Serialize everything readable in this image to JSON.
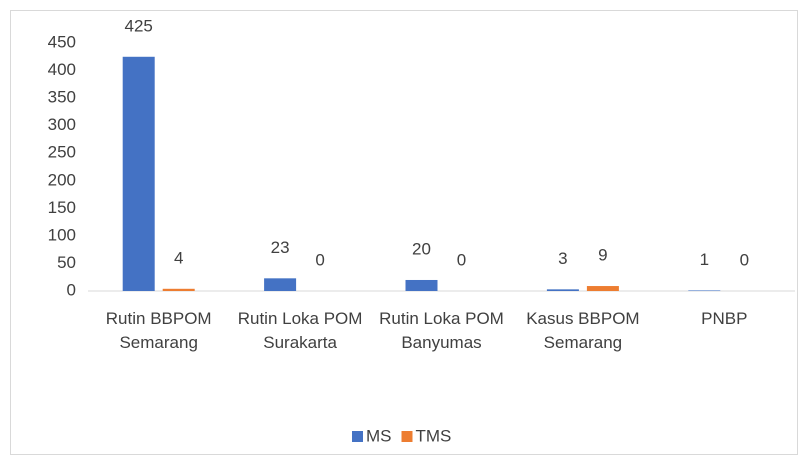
{
  "chart_data": {
    "type": "bar",
    "categories": [
      "Rutin BBPOM Semarang",
      "Rutin Loka POM Surakarta",
      "Rutin Loka POM Banyumas",
      "Kasus BBPOM Semarang",
      "PNBP"
    ],
    "series": [
      {
        "name": "MS",
        "color": "#4472c4",
        "values": [
          425,
          23,
          20,
          3,
          1
        ]
      },
      {
        "name": "TMS",
        "color": "#ed7d31",
        "values": [
          4,
          0,
          0,
          9,
          0
        ]
      }
    ],
    "ylim": [
      0,
      450
    ],
    "yticks": [
      0,
      50,
      100,
      150,
      200,
      250,
      300,
      350,
      400,
      450
    ],
    "grid": false,
    "legend": "bottom"
  }
}
